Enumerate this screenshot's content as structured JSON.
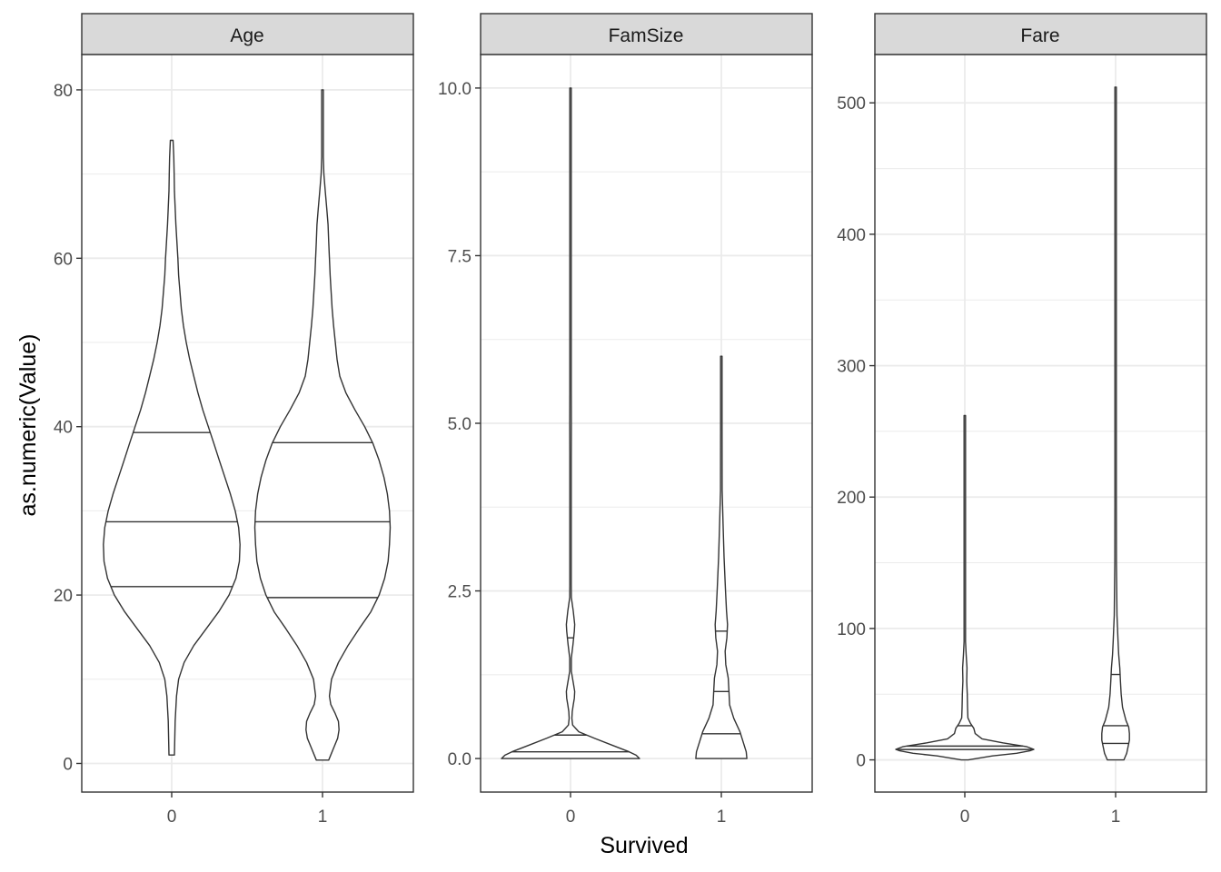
{
  "chart_data": {
    "type": "violin",
    "xlabel": "Survived",
    "ylabel": "as.numeric(Value)",
    "categories": [
      "0",
      "1"
    ],
    "grid": true,
    "legend": "none",
    "colors": {
      "panel_border": "#333333",
      "strip_fill": "#d9d9d9",
      "grid": "#ebebeb",
      "violin_stroke": "#333333",
      "violin_fill": "#ffffff"
    },
    "facets": [
      {
        "name": "Age",
        "ylim": [
          -3.4,
          84.2
        ],
        "yticks": [
          0,
          20,
          40,
          60,
          80
        ],
        "ytick_labels": [
          "0",
          "20",
          "40",
          "60",
          "80"
        ],
        "violins": [
          {
            "category": "0",
            "quantiles": [
              21,
              28.7,
              39.3
            ],
            "profile": [
              [
                1,
                0.04
              ],
              [
                3,
                0.045
              ],
              [
                5,
                0.05
              ],
              [
                8,
                0.07
              ],
              [
                10,
                0.1
              ],
              [
                12,
                0.18
              ],
              [
                14,
                0.32
              ],
              [
                16,
                0.5
              ],
              [
                18,
                0.68
              ],
              [
                20,
                0.83
              ],
              [
                22,
                0.93
              ],
              [
                24,
                0.98
              ],
              [
                26,
                0.99
              ],
              [
                28,
                0.97
              ],
              [
                30,
                0.92
              ],
              [
                32,
                0.85
              ],
              [
                34,
                0.77
              ],
              [
                36,
                0.69
              ],
              [
                38,
                0.61
              ],
              [
                40,
                0.53
              ],
              [
                42,
                0.45
              ],
              [
                44,
                0.38
              ],
              [
                46,
                0.32
              ],
              [
                48,
                0.26
              ],
              [
                50,
                0.21
              ],
              [
                52,
                0.17
              ],
              [
                54,
                0.14
              ],
              [
                56,
                0.12
              ],
              [
                58,
                0.1
              ],
              [
                60,
                0.09
              ],
              [
                62,
                0.075
              ],
              [
                64,
                0.06
              ],
              [
                66,
                0.05
              ],
              [
                68,
                0.04
              ],
              [
                70,
                0.035
              ],
              [
                72,
                0.03
              ],
              [
                73,
                0.025
              ],
              [
                74,
                0.02
              ]
            ]
          },
          {
            "category": "1",
            "quantiles": [
              19.7,
              28.7,
              38.1
            ],
            "profile": [
              [
                0.4,
                0.09
              ],
              [
                1,
                0.12
              ],
              [
                2,
                0.17
              ],
              [
                3,
                0.22
              ],
              [
                4,
                0.24
              ],
              [
                5,
                0.23
              ],
              [
                6,
                0.18
              ],
              [
                7,
                0.12
              ],
              [
                8,
                0.1
              ],
              [
                10,
                0.13
              ],
              [
                12,
                0.23
              ],
              [
                14,
                0.37
              ],
              [
                16,
                0.53
              ],
              [
                18,
                0.7
              ],
              [
                20,
                0.82
              ],
              [
                22,
                0.9
              ],
              [
                24,
                0.95
              ],
              [
                26,
                0.97
              ],
              [
                28,
                0.98
              ],
              [
                30,
                0.97
              ],
              [
                32,
                0.94
              ],
              [
                34,
                0.89
              ],
              [
                36,
                0.82
              ],
              [
                38,
                0.73
              ],
              [
                40,
                0.61
              ],
              [
                42,
                0.47
              ],
              [
                44,
                0.34
              ],
              [
                46,
                0.25
              ],
              [
                48,
                0.21
              ],
              [
                50,
                0.185
              ],
              [
                52,
                0.16
              ],
              [
                54,
                0.14
              ],
              [
                56,
                0.125
              ],
              [
                58,
                0.11
              ],
              [
                60,
                0.1
              ],
              [
                62,
                0.09
              ],
              [
                64,
                0.08
              ],
              [
                66,
                0.06
              ],
              [
                68,
                0.04
              ],
              [
                70,
                0.02
              ],
              [
                72,
                0.012
              ],
              [
                76,
                0.012
              ],
              [
                80,
                0.012
              ]
            ]
          }
        ]
      },
      {
        "name": "FamSize",
        "ylim": [
          -0.5,
          10.5
        ],
        "yticks": [
          0,
          2.5,
          5,
          7.5,
          10
        ],
        "ytick_labels": [
          "0.0",
          "2.5",
          "5.0",
          "7.5",
          "10.0"
        ],
        "violins": [
          {
            "category": "0",
            "quantiles": [
              0.1,
              0.35,
              1.8
            ],
            "profile": [
              [
                0,
                1.0
              ],
              [
                0.05,
                0.95
              ],
              [
                0.1,
                0.85
              ],
              [
                0.2,
                0.6
              ],
              [
                0.3,
                0.35
              ],
              [
                0.4,
                0.12
              ],
              [
                0.5,
                0.03
              ],
              [
                0.6,
                0.02
              ],
              [
                0.7,
                0.025
              ],
              [
                0.8,
                0.04
              ],
              [
                0.9,
                0.055
              ],
              [
                1.0,
                0.06
              ],
              [
                1.1,
                0.045
              ],
              [
                1.3,
                0.012
              ],
              [
                1.5,
                0.012
              ],
              [
                1.7,
                0.035
              ],
              [
                1.9,
                0.055
              ],
              [
                2.0,
                0.06
              ],
              [
                2.2,
                0.04
              ],
              [
                2.4,
                0.012
              ],
              [
                2.6,
                0.008
              ],
              [
                3,
                0.006
              ],
              [
                3.5,
                0.005
              ],
              [
                4,
                0.007
              ],
              [
                4.5,
                0.006
              ],
              [
                5,
                0.012
              ],
              [
                5.5,
                0.006
              ],
              [
                6,
                0.004
              ],
              [
                7,
                0.006
              ],
              [
                7.5,
                0.006
              ],
              [
                8.5,
                0.004
              ],
              [
                9.5,
                0.004
              ],
              [
                10,
                0.007
              ]
            ]
          },
          {
            "category": "1",
            "quantiles": [
              0.37,
              1.0,
              1.9
            ],
            "profile": [
              [
                0,
                0.37
              ],
              [
                0.1,
                0.36
              ],
              [
                0.2,
                0.33
              ],
              [
                0.4,
                0.27
              ],
              [
                0.6,
                0.18
              ],
              [
                0.8,
                0.12
              ],
              [
                1.0,
                0.11
              ],
              [
                1.2,
                0.1
              ],
              [
                1.4,
                0.065
              ],
              [
                1.6,
                0.055
              ],
              [
                1.8,
                0.08
              ],
              [
                2.0,
                0.09
              ],
              [
                2.2,
                0.075
              ],
              [
                2.5,
                0.06
              ],
              [
                3.0,
                0.04
              ],
              [
                3.5,
                0.025
              ],
              [
                4.0,
                0.012
              ],
              [
                5,
                0.008
              ],
              [
                6,
                0.008
              ]
            ]
          }
        ]
      },
      {
        "name": "Fare",
        "ylim": [
          -24.5,
          536.8
        ],
        "yticks": [
          0,
          100,
          200,
          300,
          400,
          500
        ],
        "ytick_labels": [
          "0",
          "100",
          "200",
          "300",
          "400",
          "500"
        ],
        "violins": [
          {
            "category": "0",
            "quantiles": [
              7.9,
              10.5,
              26
            ],
            "profile": [
              [
                0,
                0.05
              ],
              [
                3,
                0.4
              ],
              [
                5,
                0.75
              ],
              [
                7,
                0.95
              ],
              [
                8,
                1.0
              ],
              [
                10,
                0.9
              ],
              [
                13,
                0.55
              ],
              [
                16,
                0.25
              ],
              [
                20,
                0.15
              ],
              [
                24,
                0.13
              ],
              [
                28,
                0.08
              ],
              [
                32,
                0.045
              ],
              [
                40,
                0.04
              ],
              [
                50,
                0.035
              ],
              [
                60,
                0.028
              ],
              [
                70,
                0.032
              ],
              [
                80,
                0.02
              ],
              [
                90,
                0.01
              ],
              [
                110,
                0.01
              ],
              [
                150,
                0.01
              ],
              [
                200,
                0.008
              ],
              [
                262,
                0.008
              ]
            ]
          },
          {
            "category": "1",
            "quantiles": [
              12.5,
              26,
              65
            ],
            "profile": [
              [
                0,
                0.12
              ],
              [
                5,
                0.16
              ],
              [
                10,
                0.18
              ],
              [
                15,
                0.2
              ],
              [
                20,
                0.2
              ],
              [
                25,
                0.19
              ],
              [
                30,
                0.15
              ],
              [
                40,
                0.1
              ],
              [
                50,
                0.08
              ],
              [
                60,
                0.07
              ],
              [
                70,
                0.06
              ],
              [
                80,
                0.045
              ],
              [
                90,
                0.035
              ],
              [
                110,
                0.02
              ],
              [
                150,
                0.012
              ],
              [
                200,
                0.01
              ],
              [
                260,
                0.01
              ],
              [
                300,
                0.008
              ],
              [
                512,
                0.008
              ]
            ]
          }
        ]
      }
    ]
  }
}
